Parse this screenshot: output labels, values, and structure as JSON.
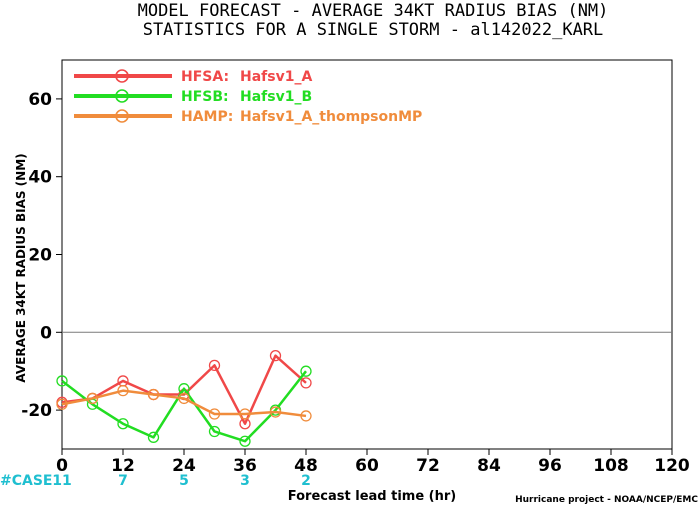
{
  "chart_data": {
    "type": "line",
    "title": "MODEL FORECAST - AVERAGE 34KT RADIUS BIAS (NM)",
    "subtitle": "STATISTICS FOR A SINGLE STORM - al142022_KARL",
    "xlabel": "Forecast lead time (hr)",
    "ylabel": "AVERAGE 34KT RADIUS BIAS (NM)",
    "xlim": [
      0,
      120
    ],
    "ylim": [
      -30,
      70
    ],
    "xticks": [
      0,
      12,
      24,
      36,
      48,
      60,
      72,
      84,
      96,
      108,
      120
    ],
    "yticks": [
      -20,
      0,
      20,
      40,
      60
    ],
    "zero_line": true,
    "legend_position": "top-left",
    "series": [
      {
        "name": "HFSA:",
        "label": "Hafsv1_A",
        "color": "#f04848",
        "x": [
          0,
          6,
          12,
          18,
          24,
          30,
          36,
          42,
          48
        ],
        "y": [
          -18,
          -17,
          -12.5,
          -16,
          -16,
          -8.5,
          -23.5,
          -6,
          -13
        ]
      },
      {
        "name": "HFSB:",
        "label": "Hafsv1_B",
        "color": "#22dd22",
        "x": [
          0,
          6,
          12,
          18,
          24,
          30,
          36,
          42,
          48
        ],
        "y": [
          -12.5,
          -18.5,
          -23.5,
          -27,
          -14.5,
          -25.5,
          -28,
          -20,
          -10
        ]
      },
      {
        "name": "HAMP:",
        "label": "Hafsv1_A_thompsonMP",
        "color": "#f08c3c",
        "x": [
          0,
          6,
          12,
          18,
          24,
          30,
          36,
          42,
          48
        ],
        "y": [
          -18.5,
          -17,
          -15,
          -16,
          -17,
          -21,
          -21,
          -20.5,
          -21.5
        ]
      }
    ],
    "case_label": "#CASE",
    "case_x": [
      0,
      12,
      24,
      36,
      48
    ],
    "case_counts": [
      "11",
      "7",
      "5",
      "3",
      "2"
    ],
    "credit": "Hurricane project - NOAA/NCEP/EMC"
  }
}
